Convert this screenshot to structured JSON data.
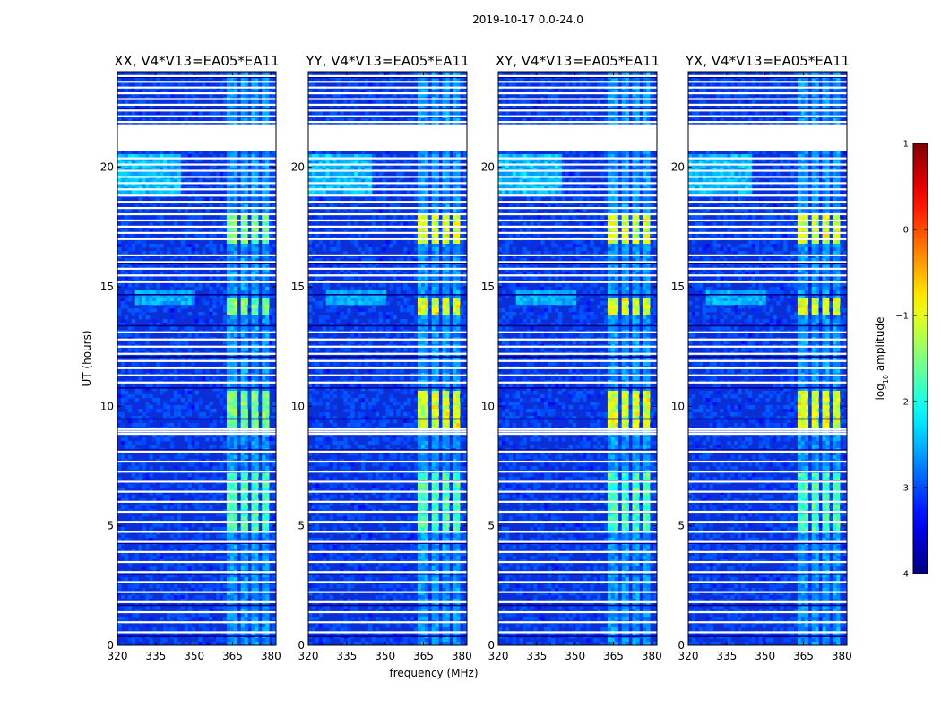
{
  "title": "2019-10-17 0.0-24.0",
  "xlabel": "frequency (MHz)",
  "ylabel": "UT (hours)",
  "colorbar": {
    "label": "log10 amplitude",
    "label_base": "log",
    "label_sub": "10",
    "label_rest": " amplitude",
    "range": [
      -4,
      1
    ],
    "ticks": [
      "1",
      "0",
      "−1",
      "−2",
      "−3",
      "−4"
    ],
    "tick_values": [
      1,
      0,
      -1,
      -2,
      -3,
      -4
    ],
    "colormap": "jet"
  },
  "panels": [
    {
      "title": "XX, V4*V13=EA05*EA11"
    },
    {
      "title": "YY, V4*V13=EA05*EA11"
    },
    {
      "title": "XY, V4*V13=EA05*EA11"
    },
    {
      "title": "YX, V4*V13=EA05*EA11"
    }
  ],
  "chart_data": {
    "type": "heatmap",
    "title": "2019-10-17 0.0-24.0",
    "xlabel": "frequency (MHz)",
    "ylabel": "UT (hours)",
    "xlim": [
      320,
      382
    ],
    "ylim": [
      0,
      24
    ],
    "xticks": [
      320,
      335,
      350,
      365,
      380
    ],
    "xtick_labels": [
      "320",
      "335",
      "350",
      "365",
      "380"
    ],
    "yticks": [
      0,
      5,
      10,
      15,
      20
    ],
    "ytick_labels": [
      "0",
      "5",
      "10",
      "15",
      "20"
    ],
    "series": [
      {
        "name": "XX, V4*V13=EA05*EA11"
      },
      {
        "name": "YY, V4*V13=EA05*EA11"
      },
      {
        "name": "XY, V4*V13=EA05*EA11"
      },
      {
        "name": "YX, V4*V13=EA05*EA11"
      }
    ],
    "value_label": "log10 amplitude",
    "value_range": [
      -4,
      1
    ],
    "flagged_ut_ranges": [
      [
        20.7,
        21.8
      ]
    ],
    "bright_rfi_band_mhz": [
      363,
      380
    ],
    "bright_ut_intervals": [
      [
        9.0,
        10.7
      ],
      [
        13.8,
        14.6
      ],
      [
        16.8,
        18.0
      ],
      [
        4.8,
        7.2
      ]
    ]
  }
}
